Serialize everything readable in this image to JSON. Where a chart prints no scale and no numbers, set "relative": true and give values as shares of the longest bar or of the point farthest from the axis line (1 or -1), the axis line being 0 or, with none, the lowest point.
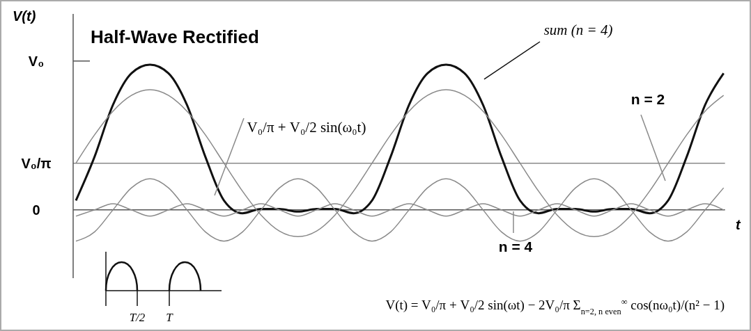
{
  "chart_data": {
    "type": "line",
    "title": "Half-Wave Rectified",
    "xlabel": "t",
    "ylabel": "V(t)",
    "relative": true,
    "categories": [
      null,
      null,
      null,
      null,
      null,
      null,
      null,
      null,
      null,
      null,
      null,
      null,
      null,
      null,
      null,
      null,
      null,
      null,
      null,
      null,
      null,
      null,
      null,
      null,
      null,
      null,
      null,
      null,
      null,
      null,
      null,
      null,
      null,
      null,
      null,
      null
    ],
    "series": [
      {
        "name": "sum  (n = 4)",
        "color": "#111111",
        "values": [
          0.065,
          0.364,
          0.723,
          0.941,
          1,
          0.941,
          0.723,
          0.364,
          0.065,
          -0.023,
          0.007,
          0.006,
          -0.012,
          0.006,
          0.007,
          -0.023,
          0.065,
          0.364,
          0.723,
          0.941,
          1,
          0.941,
          0.723,
          0.364,
          0.065,
          -0.023,
          0.007,
          0.006,
          -0.012,
          0.006,
          0.007,
          -0.023,
          0.065,
          0.364,
          0.723,
          0.941
        ]
      },
      {
        "name": "V₀/π + V₀/2 sin(ω₀t)",
        "color": "#8a8a8a",
        "values": [
          0.322,
          0.516,
          0.68,
          0.789,
          0.828,
          0.789,
          0.68,
          0.516,
          0.322,
          0.129,
          -0.035,
          -0.146,
          -0.184,
          -0.146,
          -0.035,
          0.129,
          0.322,
          0.516,
          0.68,
          0.789,
          0.828,
          0.789,
          0.68,
          0.516,
          0.322,
          0.129,
          -0.035,
          -0.146,
          -0.184,
          -0.146,
          -0.035,
          0.129,
          0.322,
          0.516,
          0.68,
          0.789
        ]
      },
      {
        "name": "n = 2",
        "color": "#8a8a8a",
        "values": [
          -0.215,
          -0.152,
          0,
          0.152,
          0.215,
          0.152,
          0,
          -0.152,
          -0.215,
          -0.152,
          0,
          0.152,
          0.215,
          0.152,
          0,
          -0.152,
          -0.215,
          -0.152,
          0,
          0.152,
          0.215,
          0.152,
          0,
          -0.152,
          -0.215,
          -0.152,
          0,
          0.152,
          0.215,
          0.152,
          0,
          -0.152,
          -0.215,
          -0.152,
          0,
          0.152
        ]
      },
      {
        "name": "n = 4",
        "color": "#8a8a8a",
        "values": [
          -0.043,
          0,
          0.043,
          0,
          -0.043,
          0,
          0.043,
          0,
          -0.043,
          0,
          0.043,
          0,
          -0.043,
          0,
          0.043,
          0,
          -0.043,
          0,
          0.043,
          0,
          -0.043,
          0,
          0.043,
          0,
          -0.043,
          0,
          0.043,
          0,
          -0.043,
          0,
          0.043,
          0,
          -0.043,
          0,
          0.043,
          0
        ]
      }
    ],
    "ref_lines": [
      {
        "axis": "y",
        "value": 0.322,
        "label": "V₀/π",
        "color": "#8a8a8a"
      }
    ],
    "annotations": [
      "V₀",
      "0",
      "T/2",
      "T",
      "V(t) = V₀/π + V₀/2 sin(ωt) − 2V₀/π Σ$_{n=2, n even}$$^{∞}$ cos(nω₀t)/(n² − 1)"
    ]
  }
}
